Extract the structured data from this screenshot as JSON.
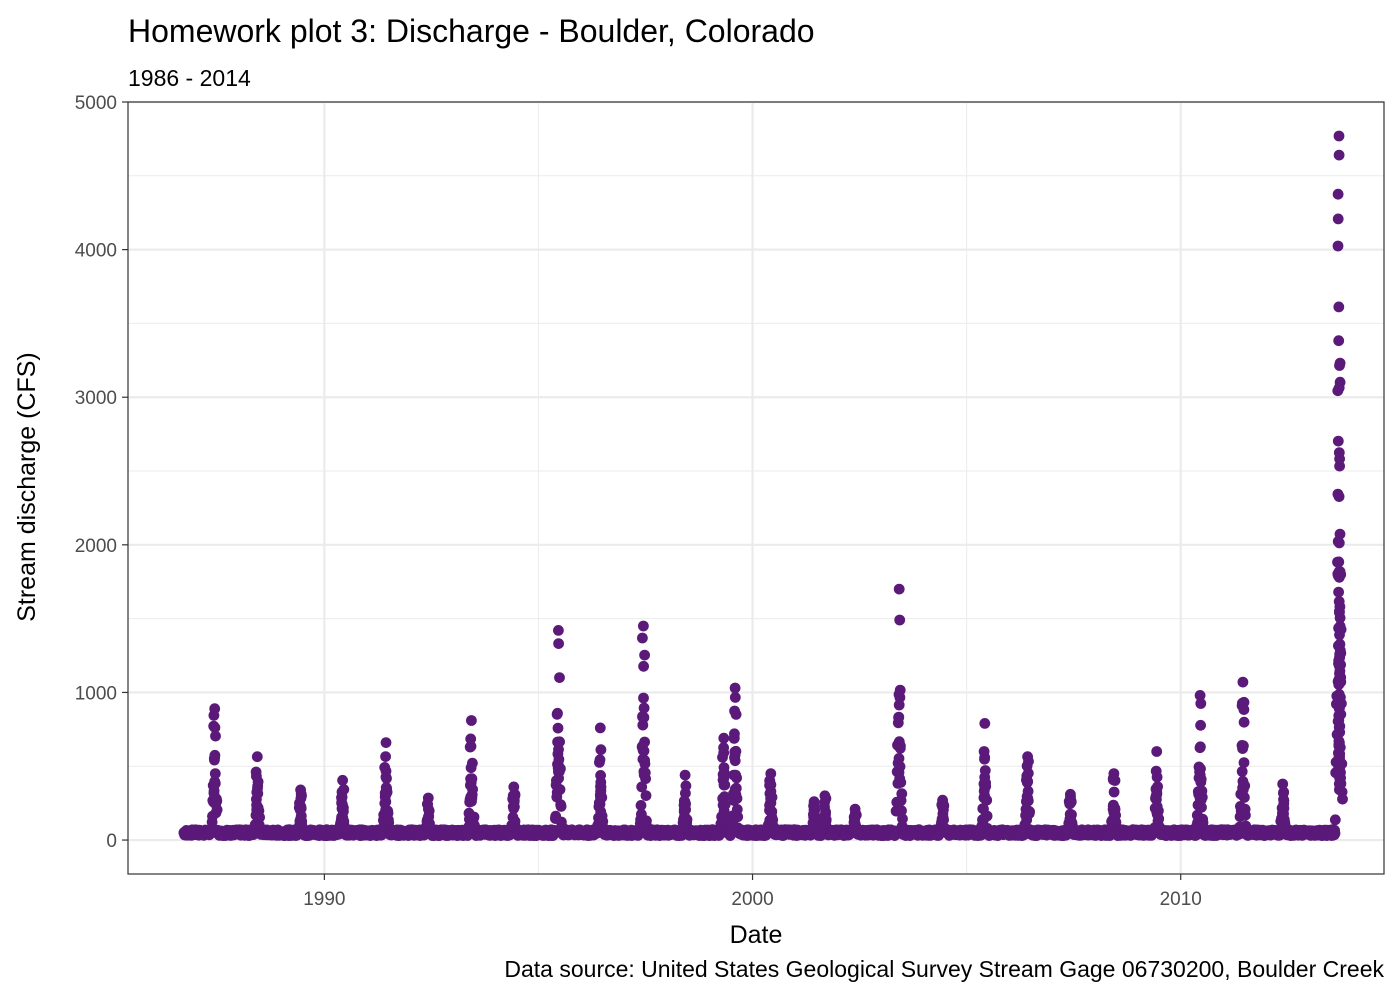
{
  "chart_data": {
    "type": "scatter",
    "title": "Homework plot 3: Discharge - Boulder, Colorado",
    "subtitle": "1986 - 2014",
    "xlabel": "Date",
    "ylabel": "Stream discharge (CFS)",
    "caption": "Data source: United States Geological Survey Stream Gage 06730200, Boulder Creek",
    "xlim": [
      "1985-06-01",
      "2014-10-01"
    ],
    "ylim": [
      -230,
      5000
    ],
    "x_ticks": [
      {
        "value": "1990-01-01",
        "label": "1990"
      },
      {
        "value": "2000-01-01",
        "label": "2000"
      },
      {
        "value": "2010-01-01",
        "label": "2010"
      }
    ],
    "y_ticks": [
      {
        "value": 0,
        "label": "0"
      },
      {
        "value": 1000,
        "label": "1000"
      },
      {
        "value": 2000,
        "label": "2000"
      },
      {
        "value": 3000,
        "label": "3000"
      },
      {
        "value": 4000,
        "label": "4000"
      },
      {
        "value": 5000,
        "label": "5000"
      }
    ],
    "grid": true,
    "point_color": "#5b1a7a",
    "annual_peaks": [
      {
        "x": "1987-06-10",
        "y": 890
      },
      {
        "x": "1988-06-08",
        "y": 565
      },
      {
        "x": "1989-06-12",
        "y": 340
      },
      {
        "x": "1990-06-05",
        "y": 405
      },
      {
        "x": "1991-06-10",
        "y": 660
      },
      {
        "x": "1992-06-05",
        "y": 285
      },
      {
        "x": "1993-06-08",
        "y": 810
      },
      {
        "x": "1994-06-05",
        "y": 360
      },
      {
        "x": "1995-06-20",
        "y": 1420
      },
      {
        "x": "1996-06-12",
        "y": 760
      },
      {
        "x": "1997-06-15",
        "y": 1450
      },
      {
        "x": "1998-06-05",
        "y": 440
      },
      {
        "x": "1999-05-01",
        "y": 690
      },
      {
        "x": "1999-08-05",
        "y": 1030
      },
      {
        "x": "2000-06-05",
        "y": 450
      },
      {
        "x": "2001-06-10",
        "y": 260
      },
      {
        "x": "2001-09-10",
        "y": 300
      },
      {
        "x": "2002-05-25",
        "y": 210
      },
      {
        "x": "2003-06-05",
        "y": 1700
      },
      {
        "x": "2004-06-10",
        "y": 270
      },
      {
        "x": "2005-06-05",
        "y": 790
      },
      {
        "x": "2006-06-05",
        "y": 565
      },
      {
        "x": "2007-06-05",
        "y": 310
      },
      {
        "x": "2008-06-10",
        "y": 450
      },
      {
        "x": "2009-06-10",
        "y": 600
      },
      {
        "x": "2010-06-15",
        "y": 980
      },
      {
        "x": "2011-06-15",
        "y": 1070
      },
      {
        "x": "2012-05-20",
        "y": 380
      },
      {
        "x": "2013-09-12",
        "y": 4770
      },
      {
        "x": "2013-09-13",
        "y": 4640
      },
      {
        "x": "2013-09-14",
        "y": 1820
      },
      {
        "x": "2013-09-15",
        "y": 1780
      },
      {
        "x": "2013-09-16",
        "y": 1550
      },
      {
        "x": "2013-09-17",
        "y": 1390
      },
      {
        "x": "2013-09-18",
        "y": 1260
      },
      {
        "x": "2013-09-19",
        "y": 1080
      }
    ]
  }
}
